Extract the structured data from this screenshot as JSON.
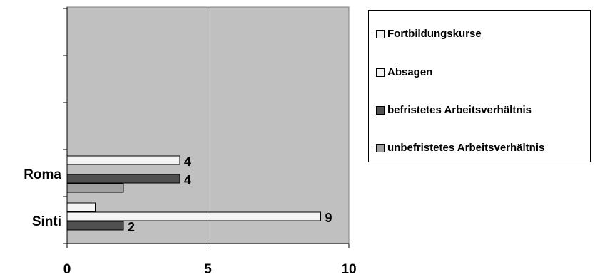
{
  "chart_data": {
    "type": "bar",
    "orientation": "horizontal",
    "categories": [
      "Sinti",
      "Roma"
    ],
    "series": [
      {
        "name": "unbefristetes Arbeitsverhältnis",
        "values": [
          0,
          2
        ],
        "color": "#a0a0a0"
      },
      {
        "name": "befristetes Arbeitsverhältnis",
        "values": [
          2,
          4
        ],
        "color": "#505050"
      },
      {
        "name": "Absagen",
        "values": [
          9,
          0
        ],
        "color": "#f4f4f4"
      },
      {
        "name": "Fortbildungskurse",
        "values": [
          1,
          4
        ],
        "color": "#f4f4f4"
      }
    ],
    "data_labels": [
      {
        "category": "Sinti",
        "series": "Absagen",
        "text": "9"
      },
      {
        "category": "Sinti",
        "series": "befristetes Arbeitsverhältnis",
        "text": "2"
      },
      {
        "category": "Roma",
        "series": "Fortbildungskurse",
        "text": "4"
      },
      {
        "category": "Roma",
        "series": "befristetes Arbeitsverhältnis",
        "text": "4"
      }
    ],
    "x_ticks": [
      "0",
      "5",
      "10"
    ],
    "xlim": [
      0,
      10
    ],
    "title": "",
    "xlabel": "",
    "ylabel": "",
    "legend_position": "right",
    "legend_order": [
      "Fortbildungskurse",
      "Absagen",
      "befristetes Arbeitsverhältnis",
      "unbefristetes Arbeitsverhältnis"
    ],
    "plot_background": "#c0c0c0",
    "gridline_at": 5
  }
}
